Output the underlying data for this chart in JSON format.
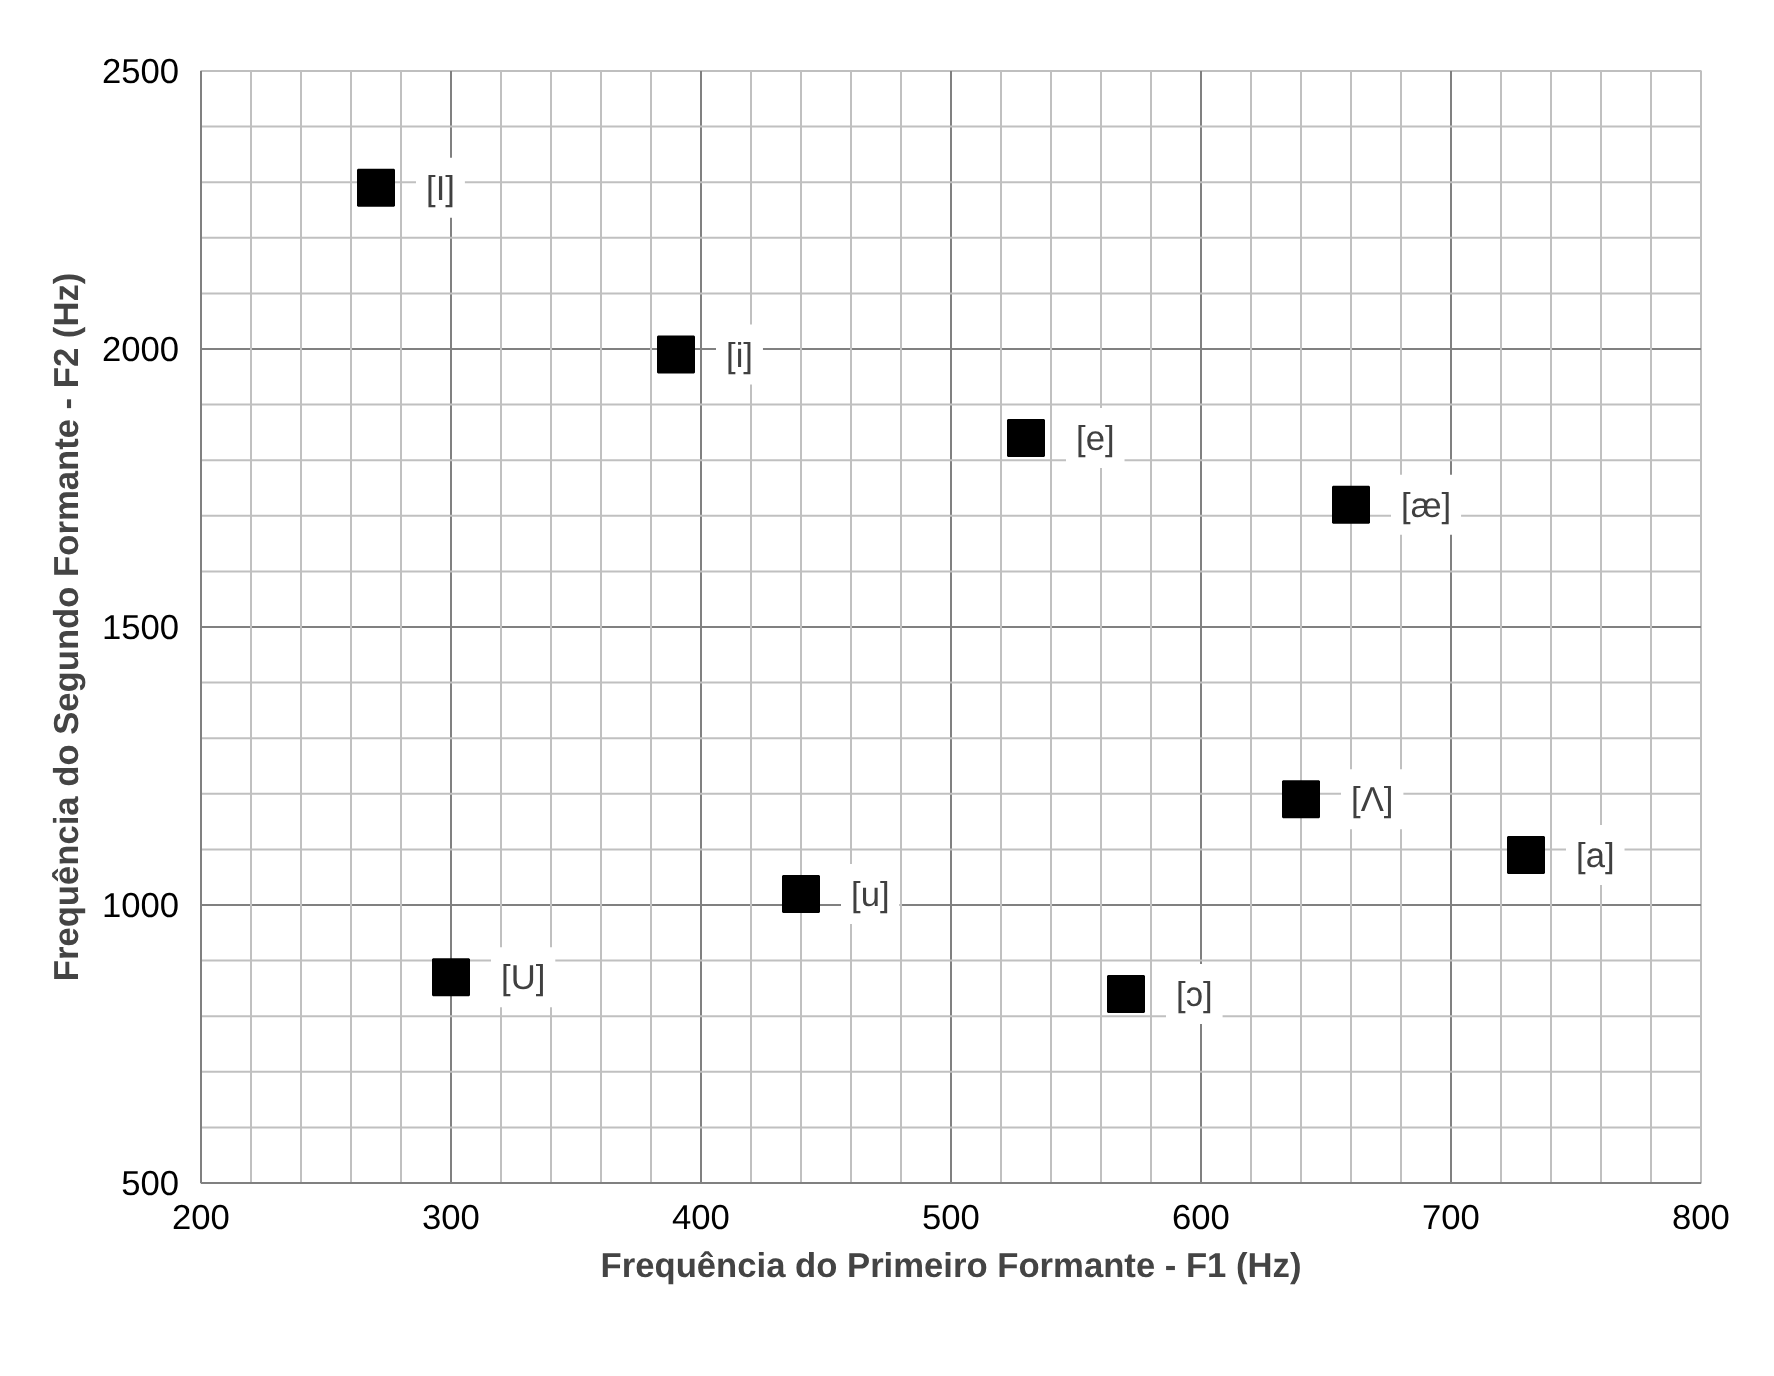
{
  "chart_data": {
    "type": "scatter",
    "xlabel": "Frequência do Primeiro Formante - F1 (Hz)",
    "ylabel": "Frequência do Segundo Formante - F2 (Hz)",
    "x": [
      270,
      390,
      530,
      660,
      640,
      730,
      440,
      300,
      570
    ],
    "series": [
      {
        "color": "#000000",
        "values": [
          2290,
          1990,
          1840,
          1720,
          1190,
          1090,
          1020,
          870,
          840
        ]
      }
    ],
    "marker": "square",
    "xlim": [
      200,
      800
    ],
    "ylim": [
      500,
      2500
    ],
    "xticks": [
      200,
      {
        "value": 220,
        "label": null
      },
      {
        "value": 240,
        "label": null
      },
      {
        "value": 260,
        "label": null
      },
      {
        "value": 280,
        "label": null
      },
      300,
      {
        "value": 320,
        "label": null
      },
      {
        "value": 340,
        "label": null
      },
      {
        "value": 360,
        "label": null
      },
      {
        "value": 380,
        "label": null
      },
      400,
      {
        "value": 420,
        "label": null
      },
      {
        "value": 440,
        "label": null
      },
      {
        "value": 460,
        "label": null
      },
      {
        "value": 480,
        "label": null
      },
      500,
      {
        "value": 520,
        "label": null
      },
      {
        "value": 540,
        "label": null
      },
      {
        "value": 560,
        "label": null
      },
      {
        "value": 580,
        "label": null
      },
      600,
      {
        "value": 620,
        "label": null
      },
      {
        "value": 640,
        "label": null
      },
      {
        "value": 660,
        "label": null
      },
      {
        "value": 680,
        "label": null
      },
      700,
      {
        "value": 720,
        "label": null
      },
      {
        "value": 740,
        "label": null
      },
      {
        "value": 760,
        "label": null
      },
      {
        "value": 780,
        "label": null
      },
      800
    ],
    "yticks": [
      500,
      {
        "value": 600,
        "label": null
      },
      {
        "value": 700,
        "label": null
      },
      {
        "value": 800,
        "label": null
      },
      {
        "value": 900,
        "label": null
      },
      1000,
      {
        "value": 1100,
        "label": null
      },
      {
        "value": 1200,
        "label": null
      },
      {
        "value": 1300,
        "label": null
      },
      {
        "value": 1400,
        "label": null
      },
      1500,
      {
        "value": 1600,
        "label": null
      },
      {
        "value": 1700,
        "label": null
      },
      {
        "value": 1800,
        "label": null
      },
      {
        "value": 1900,
        "label": null
      },
      2000,
      {
        "value": 2100,
        "label": null
      },
      {
        "value": 2200,
        "label": null
      },
      {
        "value": 2300,
        "label": null
      },
      {
        "value": 2400,
        "label": null
      },
      2500
    ],
    "grid": true,
    "annotations": [
      {
        "text": "[I]",
        "x": 270,
        "y": 2290
      },
      {
        "text": "[i]",
        "x": 390,
        "y": 1990
      },
      {
        "text": "[e]",
        "x": 530,
        "y": 1840
      },
      {
        "text": "[æ]",
        "x": 660,
        "y": 1720
      },
      {
        "text": "[Λ]",
        "x": 640,
        "y": 1190
      },
      {
        "text": "[a]",
        "x": 730,
        "y": 1090
      },
      {
        "text": "[u]",
        "x": 440,
        "y": 1020
      },
      {
        "text": "[U]",
        "x": 300,
        "y": 870
      },
      {
        "text": "[ɔ]",
        "x": 570,
        "y": 840
      }
    ]
  }
}
